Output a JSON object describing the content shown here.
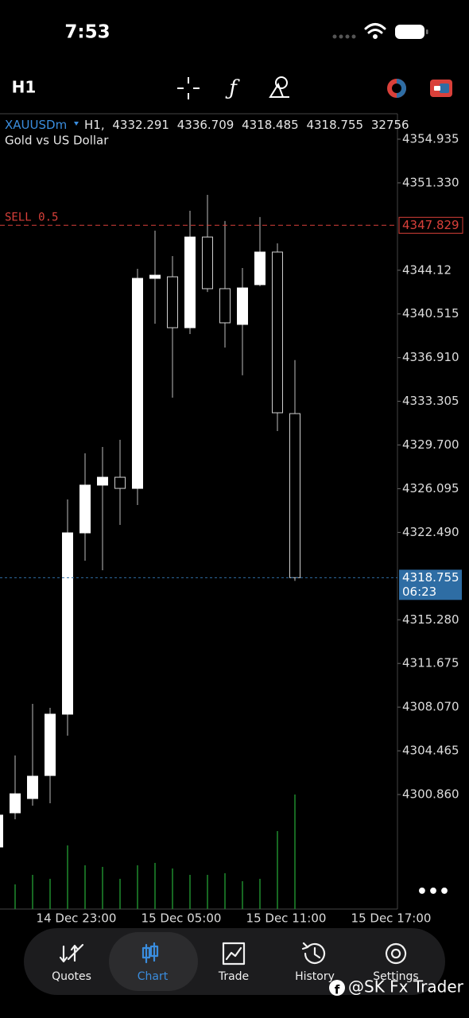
{
  "status_bar": {
    "time": "7:53"
  },
  "toolbar": {
    "timeframe": "H1"
  },
  "chart_data": {
    "type": "candlestick",
    "symbol": "XAUUSDm",
    "timeframe_label": "H1,",
    "description": "Gold vs US Dollar",
    "open": [
      4296.53,
      4299.35,
      4300.53,
      4302.43,
      4307.49,
      4322.45,
      4326.39,
      4327.04,
      4326.12,
      4343.45,
      4343.58,
      4339.38,
      4346.86,
      4342.6,
      4339.65,
      4342.93,
      4345.62,
      4332.291
    ],
    "high": [
      4299.81,
      4304.08,
      4308.34,
      4308.01,
      4325.21,
      4329.01,
      4329.54,
      4330.13,
      4344.24,
      4347.39,
      4345.29,
      4349.03,
      4350.34,
      4348.18,
      4344.3,
      4348.51,
      4346.34,
      4336.709
    ],
    "low": [
      4296.2,
      4298.82,
      4299.94,
      4300.14,
      4305.72,
      4320.15,
      4319.37,
      4323.11,
      4324.75,
      4339.71,
      4333.61,
      4338.86,
      4342.33,
      4337.74,
      4335.45,
      4342.8,
      4330.85,
      4318.485
    ],
    "close": [
      4299.16,
      4300.92,
      4302.37,
      4307.49,
      4322.45,
      4326.39,
      4327.04,
      4326.12,
      4343.45,
      4343.71,
      4339.38,
      4346.86,
      4342.6,
      4339.78,
      4342.66,
      4345.62,
      4332.36,
      4318.755
    ],
    "volume": [
      null,
      7050,
      9780,
      8640,
      18200,
      12510,
      12060,
      8640,
      12510,
      13200,
      11600,
      9780,
      9780,
      10240,
      7960,
      8640,
      22300,
      32756
    ],
    "bull_color": "#ffffff",
    "bear_color": "#000000",
    "volume_color": "#1f8a2e",
    "ylim": [
      4291.41,
      4357.035
    ],
    "yticks": [
      4354.935,
      {
        "value": 4351.33,
        "label": "4351.330"
      },
      4344.12,
      4340.515,
      {
        "value": 4336.91,
        "label": "4336.910"
      },
      4333.305,
      {
        "value": 4329.7,
        "label": "4329.700"
      },
      4326.095,
      {
        "value": 4322.49,
        "label": "4322.490"
      },
      {
        "value": 4315.28,
        "label": "4315.280"
      },
      4311.675,
      {
        "value": 4308.07,
        "label": "4308.070"
      },
      4304.465,
      {
        "value": 4300.86,
        "label": "4300.860"
      }
    ],
    "x_labels": [
      "14 Dec 23:00",
      "15 Dec 05:00",
      "15 Dec 11:00",
      "15 Dec 17:00"
    ],
    "order": {
      "label": "SELL 0.5",
      "price": 4347.829,
      "color": "#d9403a"
    },
    "current_price": {
      "countdown": "06:23",
      "color": "#2e6da4"
    }
  },
  "nav": {
    "items": [
      "Quotes",
      "Chart",
      "Trade",
      "History",
      "Settings"
    ],
    "active": 1
  },
  "watermark": "@SK Fx Trader"
}
